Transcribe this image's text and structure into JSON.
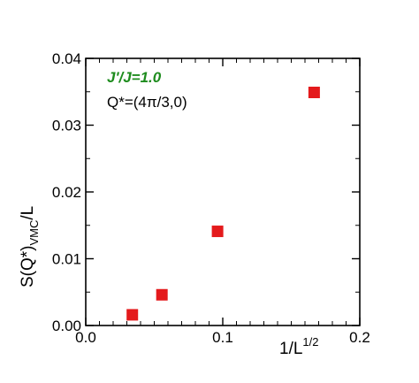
{
  "chart_data": {
    "type": "scatter",
    "x": [
      0.034,
      0.0556,
      0.0962,
      0.1667
    ],
    "y": [
      0.0016,
      0.0046,
      0.0141,
      0.0349
    ],
    "xlim": [
      0.0,
      0.2
    ],
    "ylim": [
      0.0,
      0.04
    ],
    "x_ticks": [
      "0.0",
      "0.1",
      "0.2"
    ],
    "y_ticks": [
      "0.00",
      "0.01",
      "0.02",
      "0.03",
      "0.04"
    ],
    "xlabel": {
      "base": "1/L",
      "sup": "1/2"
    },
    "ylabel": {
      "base": "S(Q*)",
      "sub": "VMC",
      "tail": "/L"
    },
    "annotations": [
      {
        "text": "J'/J=1.0",
        "color": "#1e8c1e",
        "position": "top-left"
      },
      {
        "text": "Q*=(4π/3,0)",
        "color": "#000000",
        "position": "top-left"
      }
    ],
    "marker": "square",
    "marker_color": "#e41a1c",
    "grid": false,
    "legend": "none"
  }
}
